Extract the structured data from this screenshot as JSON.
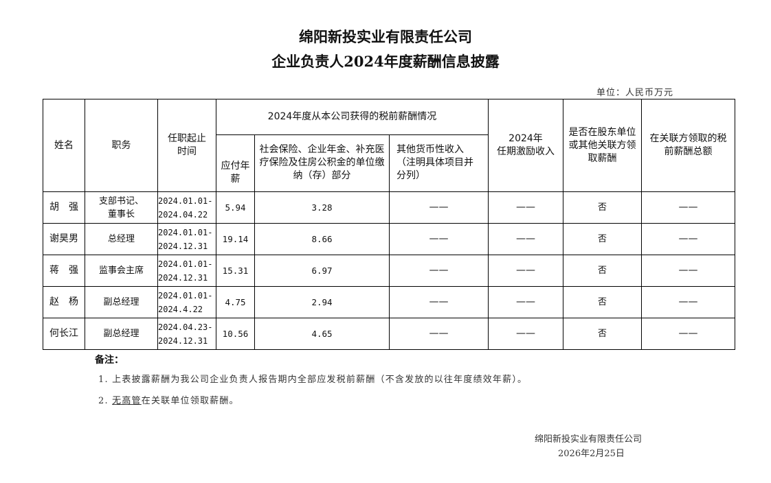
{
  "title": {
    "company": "绵阳新投实业有限责任公司",
    "subtitle": "企业负责人2024年度薪酬信息披露"
  },
  "unit": "单位：人民币万元",
  "table": {
    "headers": {
      "name": "姓名",
      "position": "职务",
      "term": "任职起止时间",
      "group": "2024年度从本公司获得的税前薪酬情况",
      "salary": "应付年薪",
      "insurance": "社会保险、企业年金、补充医疗保险及住房公积金的单位缴纳（存）部分",
      "other": "其他货币性收入（注明具体项目并分列）",
      "incentive_year": "2024年",
      "incentive": "任期激励收入",
      "related": "是否在股东单位或其他关联方领取薪酬",
      "related_total": "在关联方领取的税前薪酬总额"
    },
    "rows": [
      {
        "name": "胡　强",
        "position": "支部书记、董事长",
        "term_start": "2024.01.01-",
        "term_end": "2024.04.22",
        "salary": "5.94",
        "insurance": "3.28",
        "other": "——",
        "incentive": "——",
        "related": "否",
        "related_total": "——"
      },
      {
        "name": "谢昊男",
        "position": "总经理",
        "term_start": "2024.01.01-",
        "term_end": "2024.12.31",
        "salary": "19.14",
        "insurance": "8.66",
        "other": "——",
        "incentive": "——",
        "related": "否",
        "related_total": "——"
      },
      {
        "name": "蒋　强",
        "position": "监事会主席",
        "term_start": "2024.01.01-",
        "term_end": "2024.12.31",
        "salary": "15.31",
        "insurance": "6.97",
        "other": "——",
        "incentive": "——",
        "related": "否",
        "related_total": "——"
      },
      {
        "name": "赵　杨",
        "position": "副总经理",
        "term_start": "2024.01.01-",
        "term_end": "2024.4.22",
        "salary": "4.75",
        "insurance": "2.94",
        "other": "——",
        "incentive": "——",
        "related": "否",
        "related_total": "——"
      },
      {
        "name": "何长江",
        "position": "副总经理",
        "term_start": "2024.04.23-",
        "term_end": "2024.12.31",
        "salary": "10.56",
        "insurance": "4.65",
        "other": "——",
        "incentive": "——",
        "related": "否",
        "related_total": "——"
      }
    ]
  },
  "notes": {
    "label": "备注：",
    "n1": "1. 上表披露薪酬为我公司企业负责人报告期内全部应发税前薪酬（不含发放的以往年度绩效年薪）。",
    "n2_prefix": "2. ",
    "n2_underlined": "无高管",
    "n2_rest": "在关联单位领取薪酬。"
  },
  "signature": {
    "company": "绵阳新投实业有限责任公司",
    "date": "2026年2月25日"
  }
}
